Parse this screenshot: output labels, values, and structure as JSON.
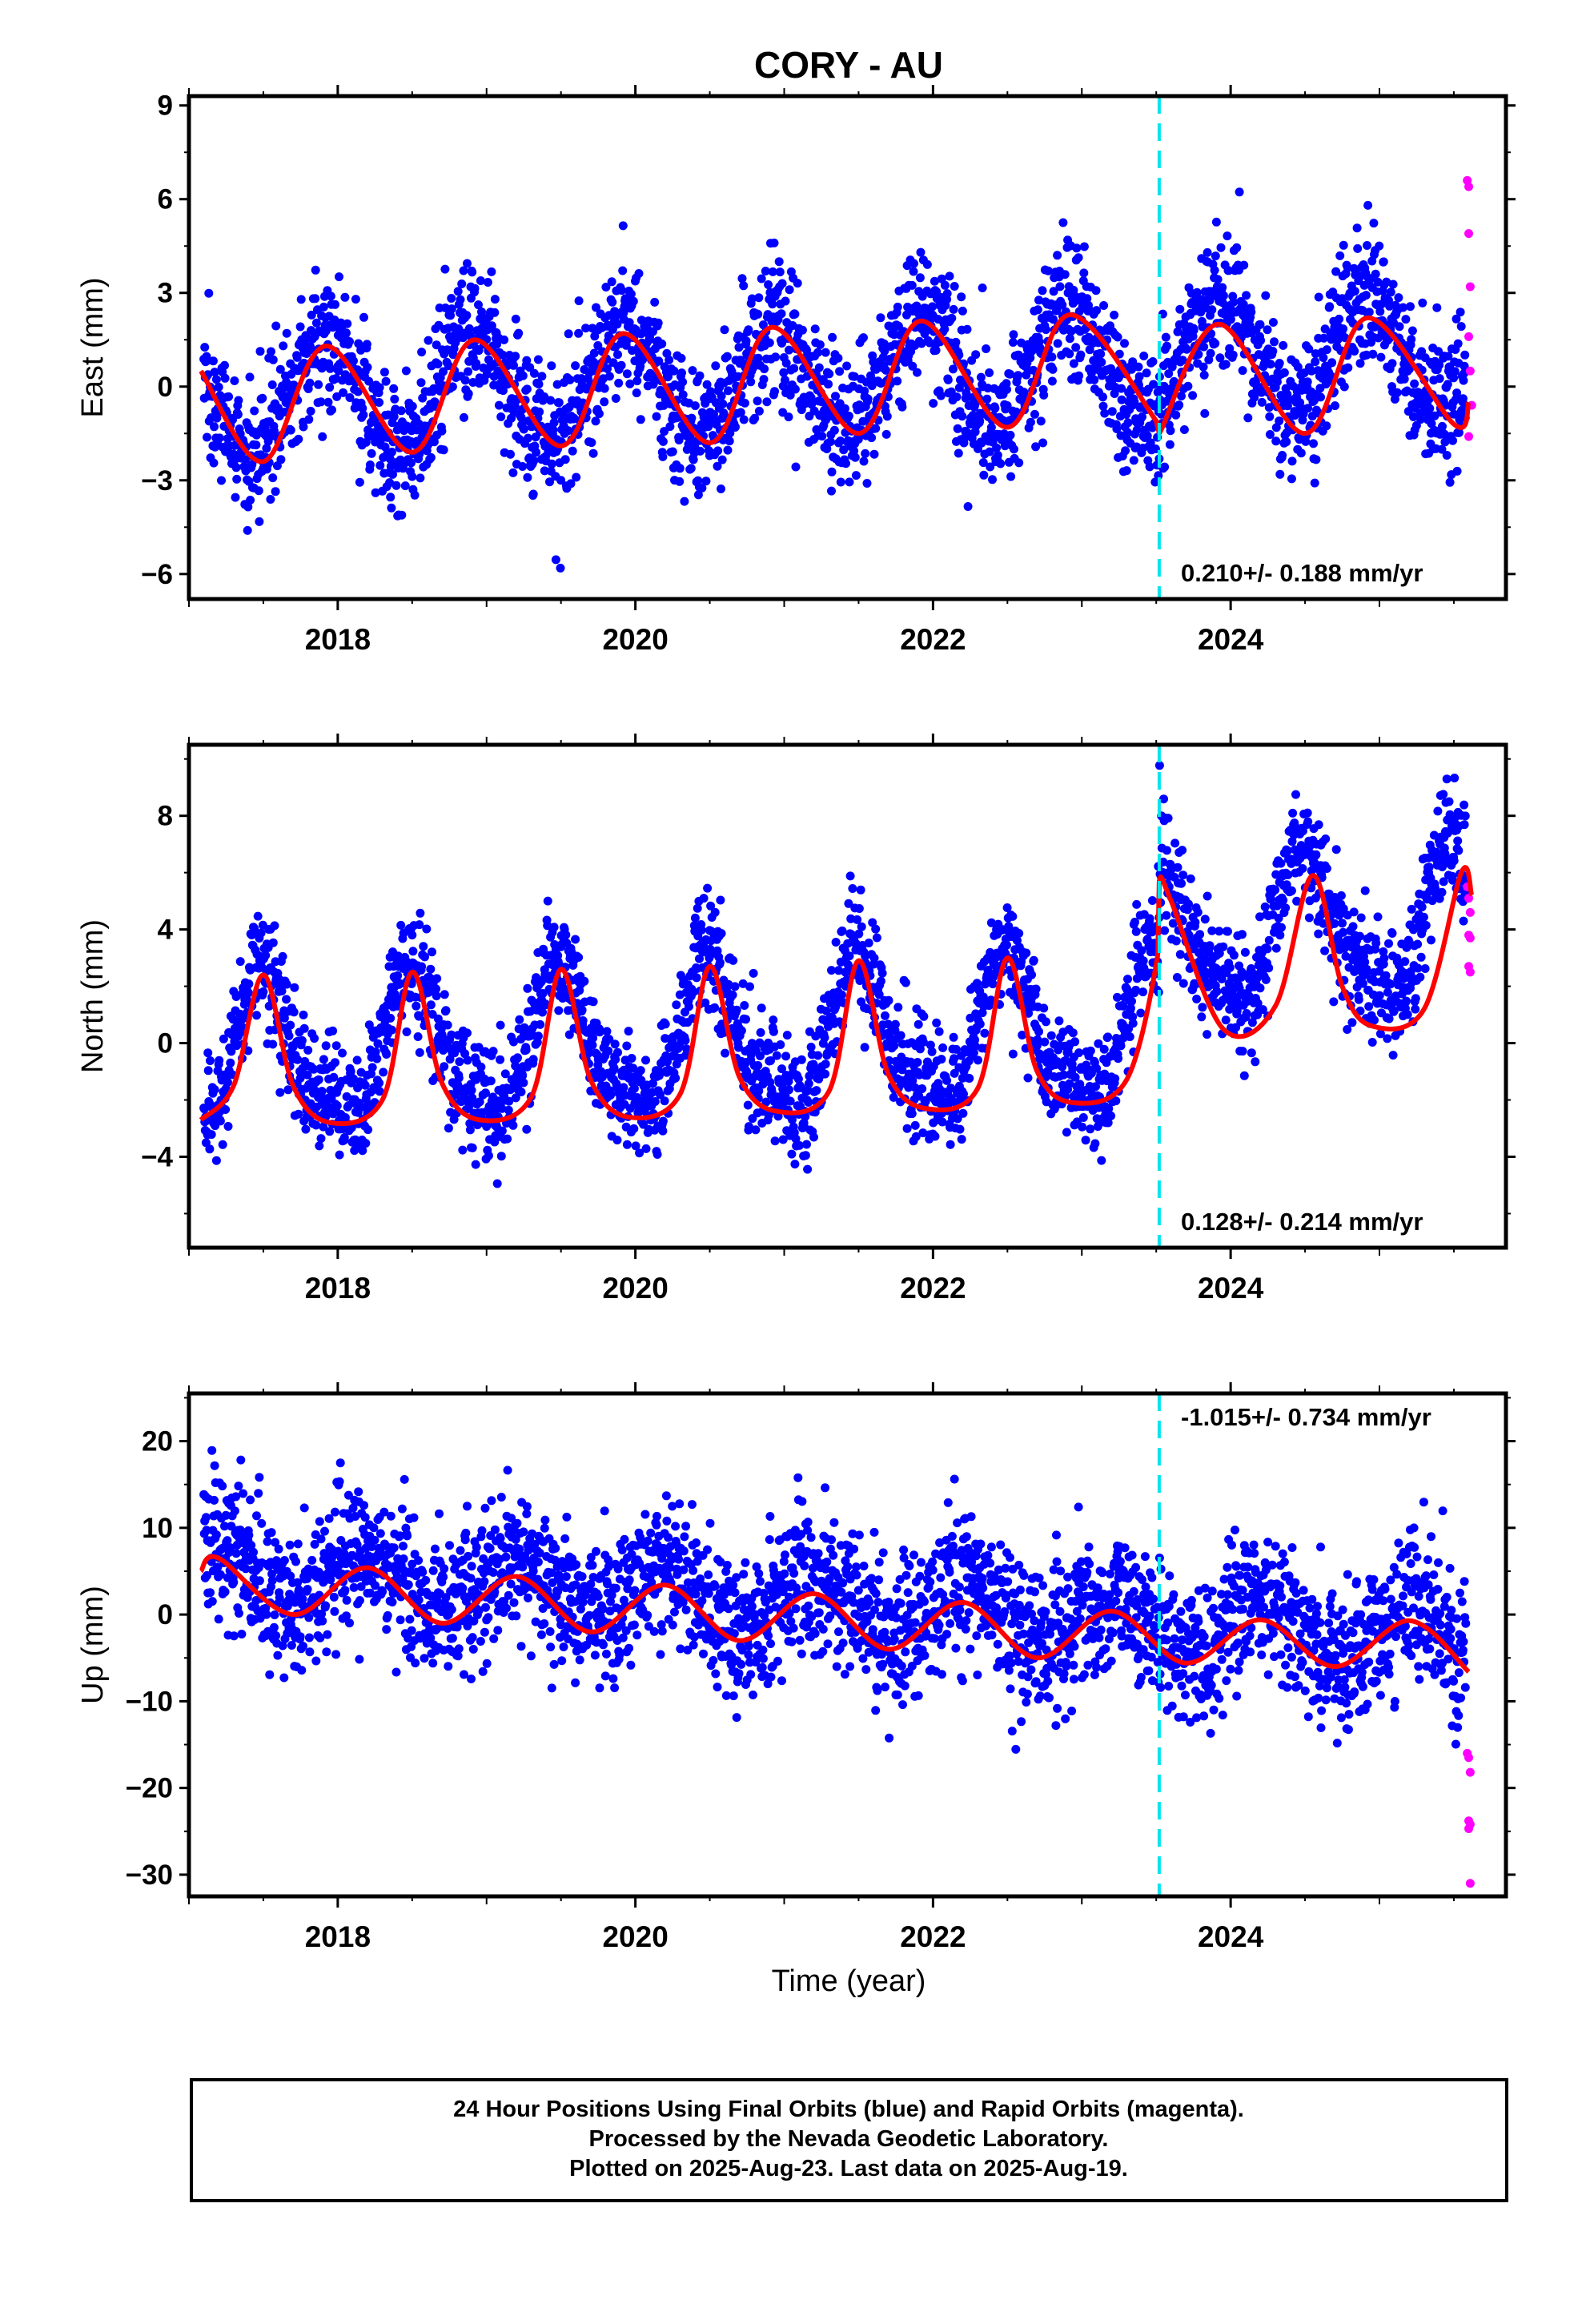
{
  "title": "CORY - AU",
  "xlabel": "Time (year)",
  "footer": [
    "24 Hour Positions Using Final Orbits (blue) and Rapid Orbits (magenta).",
    "Processed by the Nevada Geodetic Laboratory.",
    "Plotted on 2025-Aug-23. Last data on 2025-Aug-19."
  ],
  "colors": {
    "final": "#0000ff",
    "rapid": "#ff00ff",
    "model": "#ff0000",
    "break_line": "#00e5ee"
  },
  "chart_data": [
    {
      "type": "scatter",
      "ylabel": "East (mm)",
      "xlim": [
        2017.0,
        2025.85
      ],
      "ylim": [
        -6.8,
        9.3
      ],
      "yticks": [
        -6,
        -3,
        0,
        3,
        6,
        9
      ],
      "ytick_labels": [
        "−6",
        "−3",
        "0",
        "3",
        "6",
        "9"
      ],
      "xticks": [
        2018,
        2020,
        2022,
        2024
      ],
      "grid": false,
      "break_year": 2023.52,
      "rate_label": "0.210+/- 0.188 mm/yr",
      "rate_label_position": "bottom-right",
      "series": [
        {
          "kind": "final",
          "t_start": 2017.1,
          "t_end": 2025.58,
          "offset": -0.5,
          "trend": 0.21,
          "annual_amp": 1.8,
          "annual_peak": 2017.92,
          "semiannual_amp": 0.0,
          "semiannual_peak": 2017.2,
          "step": 0.0,
          "noise": 1.1,
          "n_points": 2800
        },
        {
          "kind": "rapid",
          "points": [
            [
              2025.59,
              6.6
            ],
            [
              2025.6,
              6.4
            ],
            [
              2025.6,
              4.9
            ],
            [
              2025.61,
              3.2
            ],
            [
              2025.6,
              1.6
            ],
            [
              2025.61,
              0.5
            ],
            [
              2025.62,
              -0.6
            ],
            [
              2025.6,
              -1.6
            ]
          ]
        }
      ],
      "model_line": [
        [
          2017.08,
          0.5
        ],
        [
          2017.5,
          -2.4
        ],
        [
          2017.92,
          1.3
        ],
        [
          2018.5,
          -2.1
        ],
        [
          2018.92,
          1.5
        ],
        [
          2019.5,
          -1.9
        ],
        [
          2019.92,
          1.7
        ],
        [
          2020.5,
          -1.8
        ],
        [
          2020.92,
          1.9
        ],
        [
          2021.5,
          -1.5
        ],
        [
          2021.92,
          2.1
        ],
        [
          2022.5,
          -1.3
        ],
        [
          2022.92,
          2.3
        ],
        [
          2023.5,
          -1.1
        ],
        [
          2023.52,
          -1.5
        ],
        [
          2023.92,
          2.0
        ],
        [
          2024.5,
          -1.5
        ],
        [
          2024.92,
          2.2
        ],
        [
          2025.5,
          -1.2
        ],
        [
          2025.6,
          -0.5
        ]
      ]
    },
    {
      "type": "scatter",
      "ylabel": "North (mm)",
      "xlim": [
        2017.0,
        2025.85
      ],
      "ylim": [
        -7.2,
        10.5
      ],
      "yticks": [
        -4,
        0,
        4,
        8
      ],
      "ytick_labels": [
        "−4",
        "0",
        "4",
        "8"
      ],
      "xticks": [
        2018,
        2020,
        2022,
        2024
      ],
      "grid": false,
      "break_year": 2023.52,
      "rate_label": "0.128+/- 0.214 mm/yr",
      "rate_label_position": "bottom-right",
      "series": [
        {
          "kind": "final",
          "t_start": 2017.1,
          "t_end": 2025.58,
          "offset": -0.4,
          "trend": 0.128,
          "annual_amp": 2.5,
          "annual_peak": 2017.5,
          "semiannual_amp": 0.7,
          "semiannual_peak": 2017.45,
          "step": 3.4,
          "noise": 1.0,
          "n_points": 2800
        },
        {
          "kind": "rapid",
          "points": [
            [
              2025.59,
              5.5
            ],
            [
              2025.6,
              5.1
            ],
            [
              2025.61,
              4.6
            ],
            [
              2025.6,
              3.8
            ],
            [
              2025.61,
              3.7
            ],
            [
              2025.6,
              2.7
            ],
            [
              2025.61,
              2.5
            ]
          ]
        }
      ],
      "model_line": [
        [
          2017.08,
          -2.7
        ],
        [
          2017.3,
          -1.5
        ],
        [
          2017.5,
          2.4
        ],
        [
          2017.7,
          -1.5
        ],
        [
          2017.95,
          -2.8
        ],
        [
          2018.3,
          -2.0
        ],
        [
          2018.5,
          2.5
        ],
        [
          2018.7,
          -1.4
        ],
        [
          2018.95,
          -2.7
        ],
        [
          2019.3,
          -1.9
        ],
        [
          2019.5,
          2.6
        ],
        [
          2019.7,
          -1.3
        ],
        [
          2019.95,
          -2.6
        ],
        [
          2020.3,
          -1.8
        ],
        [
          2020.5,
          2.7
        ],
        [
          2020.7,
          -1.2
        ],
        [
          2020.95,
          -2.4
        ],
        [
          2021.3,
          -1.7
        ],
        [
          2021.5,
          2.9
        ],
        [
          2021.7,
          -1.1
        ],
        [
          2021.95,
          -2.3
        ],
        [
          2022.3,
          -1.6
        ],
        [
          2022.5,
          3.0
        ],
        [
          2022.7,
          -1.0
        ],
        [
          2022.95,
          -2.1
        ],
        [
          2023.3,
          -1.3
        ],
        [
          2023.51,
          3.1
        ],
        [
          2023.52,
          5.7
        ],
        [
          2023.6,
          5.0
        ],
        [
          2023.95,
          0.5
        ],
        [
          2024.3,
          1.3
        ],
        [
          2024.55,
          5.9
        ],
        [
          2024.75,
          2.0
        ],
        [
          2024.95,
          0.6
        ],
        [
          2025.3,
          1.2
        ],
        [
          2025.55,
          6.0
        ],
        [
          2025.62,
          5.2
        ]
      ]
    },
    {
      "type": "scatter",
      "ylabel": "Up (mm)",
      "xlim": [
        2017.0,
        2025.85
      ],
      "ylim": [
        -32.5,
        25.5
      ],
      "yticks": [
        -30,
        -20,
        -10,
        0,
        10,
        20
      ],
      "ytick_labels": [
        "−30",
        "−20",
        "−10",
        "0",
        "10",
        "20"
      ],
      "xticks": [
        2018,
        2020,
        2022,
        2024
      ],
      "grid": false,
      "break_year": 2023.52,
      "rate_label": "-1.015+/- 0.734 mm/yr",
      "rate_label_position": "top-right",
      "series": [
        {
          "kind": "final",
          "t_start": 2017.1,
          "t_end": 2025.58,
          "offset": 5.4,
          "trend": -1.015,
          "annual_amp": 3.2,
          "annual_peak": 2017.2,
          "semiannual_amp": 0.0,
          "semiannual_peak": 2017.2,
          "step": 0.0,
          "noise": 4.2,
          "n_points": 2800
        },
        {
          "kind": "rapid",
          "points": [
            [
              2025.59,
              -16.0
            ],
            [
              2025.6,
              -16.5
            ],
            [
              2025.61,
              -18.2
            ],
            [
              2025.6,
              -23.8
            ],
            [
              2025.61,
              -24.2
            ],
            [
              2025.6,
              -24.7
            ],
            [
              2025.61,
              -31.0
            ]
          ]
        }
      ],
      "model_line": [
        [
          2017.08,
          5.0
        ],
        [
          2017.2,
          6.5
        ],
        [
          2017.7,
          0.0
        ],
        [
          2018.2,
          5.4
        ],
        [
          2018.7,
          -1.0
        ],
        [
          2019.2,
          4.4
        ],
        [
          2019.7,
          -2.0
        ],
        [
          2020.2,
          3.4
        ],
        [
          2020.7,
          -3.0
        ],
        [
          2021.2,
          2.4
        ],
        [
          2021.7,
          -4.0
        ],
        [
          2022.2,
          1.4
        ],
        [
          2022.7,
          -5.0
        ],
        [
          2023.2,
          0.4
        ],
        [
          2023.7,
          -5.6
        ],
        [
          2024.2,
          -0.6
        ],
        [
          2024.7,
          -6.0
        ],
        [
          2025.2,
          -0.7
        ],
        [
          2025.6,
          -6.6
        ]
      ]
    }
  ]
}
